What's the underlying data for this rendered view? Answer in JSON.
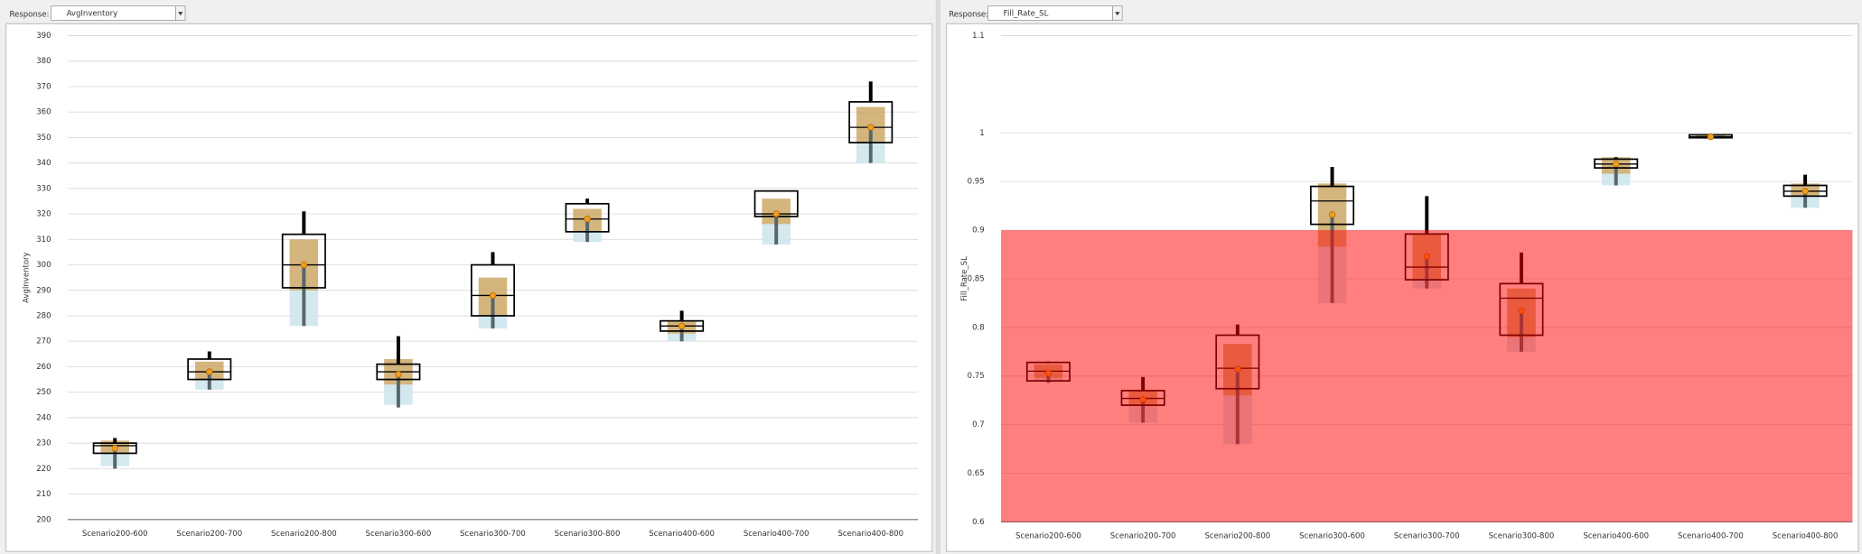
{
  "panels": [
    {
      "label": "Response:",
      "dropdown": "AvgInventory"
    },
    {
      "label": "Response:",
      "dropdown": "Fill_Rate_SL"
    }
  ],
  "chart_data": [
    {
      "type": "box",
      "y_label": "AvgInventory",
      "categories": [
        "Scenario200-600",
        "Scenario200-700",
        "Scenario200-800",
        "Scenario300-600",
        "Scenario300-700",
        "Scenario300-800",
        "Scenario400-600",
        "Scenario400-700",
        "Scenario400-800"
      ],
      "ylim": [
        200,
        390
      ],
      "yticks": [
        200,
        210,
        220,
        230,
        240,
        250,
        260,
        270,
        280,
        290,
        300,
        310,
        320,
        330,
        340,
        350,
        360,
        370,
        380,
        390
      ],
      "grid": true,
      "colors": {
        "box": "#000000",
        "upper_band": "#c9a35c",
        "lower_band": "#cfe6ee",
        "whisker_high": "#000000",
        "whisker_low": "#56666b",
        "mean": "#f0a020"
      },
      "boxes": [
        {
          "q1": 226,
          "median": 229,
          "q3": 230,
          "mean": 228,
          "whisker_low": 220,
          "whisker_high": 232,
          "band_low": 221,
          "band_mid": 226,
          "band_high": 231
        },
        {
          "q1": 255,
          "median": 258,
          "q3": 263,
          "mean": 258,
          "whisker_low": 251,
          "whisker_high": 266,
          "band_low": 251,
          "band_mid": 255,
          "band_high": 262
        },
        {
          "q1": 291,
          "median": 300,
          "q3": 312,
          "mean": 300,
          "whisker_low": 276,
          "whisker_high": 321,
          "band_low": 276,
          "band_mid": 290,
          "band_high": 310
        },
        {
          "q1": 255,
          "median": 258,
          "q3": 261,
          "mean": 257,
          "whisker_low": 244,
          "whisker_high": 272,
          "band_low": 245,
          "band_mid": 253,
          "band_high": 263
        },
        {
          "q1": 280,
          "median": 288,
          "q3": 300,
          "mean": 288,
          "whisker_low": 275,
          "whisker_high": 305,
          "band_low": 275,
          "band_mid": 280,
          "band_high": 295
        },
        {
          "q1": 313,
          "median": 318,
          "q3": 324,
          "mean": 318,
          "whisker_low": 309,
          "whisker_high": 326,
          "band_low": 309,
          "band_mid": 313,
          "band_high": 322
        },
        {
          "q1": 274,
          "median": 276,
          "q3": 278,
          "mean": 276,
          "whisker_low": 270,
          "whisker_high": 282,
          "band_low": 270,
          "band_mid": 273,
          "band_high": 278
        },
        {
          "q1": 319,
          "median": 320,
          "q3": 329,
          "mean": 320,
          "whisker_low": 308,
          "whisker_high": 329,
          "band_low": 308,
          "band_mid": 316,
          "band_high": 326
        },
        {
          "q1": 348,
          "median": 354,
          "q3": 364,
          "mean": 354,
          "whisker_low": 340,
          "whisker_high": 372,
          "band_low": 340,
          "band_mid": 348,
          "band_high": 362
        }
      ]
    },
    {
      "type": "box",
      "y_label": "Fill_Rate_SL",
      "categories": [
        "Scenario200-600",
        "Scenario200-700",
        "Scenario200-800",
        "Scenario300-600",
        "Scenario300-700",
        "Scenario300-800",
        "Scenario400-600",
        "Scenario400-700",
        "Scenario400-800"
      ],
      "ylim": [
        0.6,
        1.1
      ],
      "yticks": [
        0.6,
        0.65,
        0.7,
        0.75,
        0.8,
        0.85,
        0.9,
        0.95,
        1,
        1.1
      ],
      "grid": true,
      "threshold": 0.9,
      "threshold_color": "#ff0000",
      "colors": {
        "box": "#000000",
        "upper_band": "#c9a35c",
        "lower_band": "#cfe6ee",
        "whisker_high": "#000000",
        "whisker_low": "#56666b",
        "mean": "#f0a020"
      },
      "boxes": [
        {
          "q1": 0.745,
          "median": 0.755,
          "q3": 0.764,
          "mean": 0.753,
          "whisker_low": 0.743,
          "whisker_high": 0.765,
          "band_low": 0.745,
          "band_mid": 0.748,
          "band_high": 0.762
        },
        {
          "q1": 0.72,
          "median": 0.727,
          "q3": 0.735,
          "mean": 0.726,
          "whisker_low": 0.702,
          "whisker_high": 0.749,
          "band_low": 0.702,
          "band_mid": 0.72,
          "band_high": 0.735
        },
        {
          "q1": 0.737,
          "median": 0.758,
          "q3": 0.792,
          "mean": 0.757,
          "whisker_low": 0.68,
          "whisker_high": 0.803,
          "band_low": 0.68,
          "band_mid": 0.73,
          "band_high": 0.783
        },
        {
          "q1": 0.906,
          "median": 0.93,
          "q3": 0.945,
          "mean": 0.916,
          "whisker_low": 0.825,
          "whisker_high": 0.965,
          "band_low": 0.825,
          "band_mid": 0.883,
          "band_high": 0.948
        },
        {
          "q1": 0.849,
          "median": 0.862,
          "q3": 0.896,
          "mean": 0.873,
          "whisker_low": 0.84,
          "whisker_high": 0.935,
          "band_low": 0.84,
          "band_mid": 0.85,
          "band_high": 0.895
        },
        {
          "q1": 0.792,
          "median": 0.83,
          "q3": 0.845,
          "mean": 0.817,
          "whisker_low": 0.775,
          "whisker_high": 0.877,
          "band_low": 0.775,
          "band_mid": 0.79,
          "band_high": 0.84
        },
        {
          "q1": 0.964,
          "median": 0.968,
          "q3": 0.973,
          "mean": 0.968,
          "whisker_low": 0.946,
          "whisker_high": 0.975,
          "band_low": 0.946,
          "band_mid": 0.958,
          "band_high": 0.975
        },
        {
          "q1": 0.995,
          "median": 0.996,
          "q3": 0.998,
          "mean": 0.996,
          "whisker_low": 0.995,
          "whisker_high": 0.998,
          "band_low": 0.995,
          "band_mid": 0.995,
          "band_high": 0.998
        },
        {
          "q1": 0.935,
          "median": 0.94,
          "q3": 0.946,
          "mean": 0.94,
          "whisker_low": 0.923,
          "whisker_high": 0.957,
          "band_low": 0.923,
          "band_mid": 0.935,
          "band_high": 0.948
        }
      ]
    }
  ]
}
